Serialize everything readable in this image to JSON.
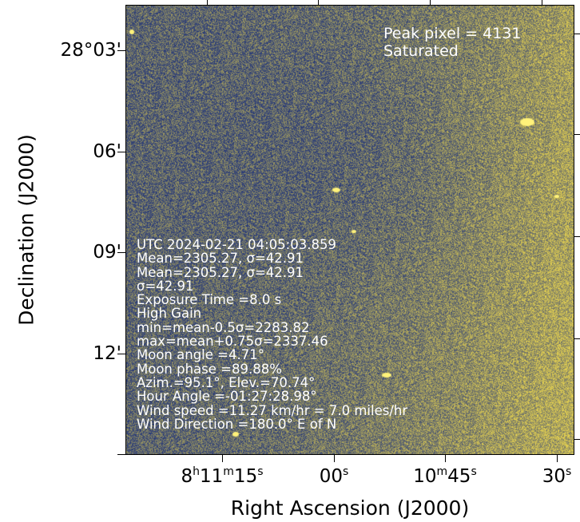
{
  "peak": {
    "line1": "Peak pixel = 4131",
    "line2": "Saturated"
  },
  "info": [
    "UTC  2024-02-21  04:05:03.859",
    "Mean=2305.27,  σ=42.91",
    "Mean=2305.27,  σ=42.91",
    "σ=42.91",
    "Exposure Time =8.0 s",
    "High Gain",
    "min=mean-0.5σ=2283.82",
    "max=mean+0.75σ=2337.46",
    "Moon angle =4.71°",
    "Moon phase =89.88%",
    "Azim.=95.1°, Elev.=70.74°",
    "Hour Angle =-01:27:28.98°",
    "Wind speed =11.27 km/hr = 7.0 miles/hr",
    "Wind Direction =180.0° E of N"
  ],
  "axes": {
    "xlabel": "Right Ascension (J2000)",
    "ylabel": "Declination (J2000)",
    "yticks": [
      "28°03'",
      "06'",
      "09'",
      "12'"
    ],
    "xticks": [
      {
        "main": "8",
        "h": "h",
        "m_val": "11",
        "m": "m",
        "s_val": "15",
        "s": "s"
      },
      {
        "main": "00",
        "s": "s"
      },
      {
        "main": "10",
        "m": "m",
        "s_val": "45",
        "s": "s"
      },
      {
        "main": "30",
        "s": "s"
      }
    ]
  },
  "colors": {
    "dark": "#283a78",
    "mid": "#7a7a6a",
    "bright": "#e6d250"
  }
}
